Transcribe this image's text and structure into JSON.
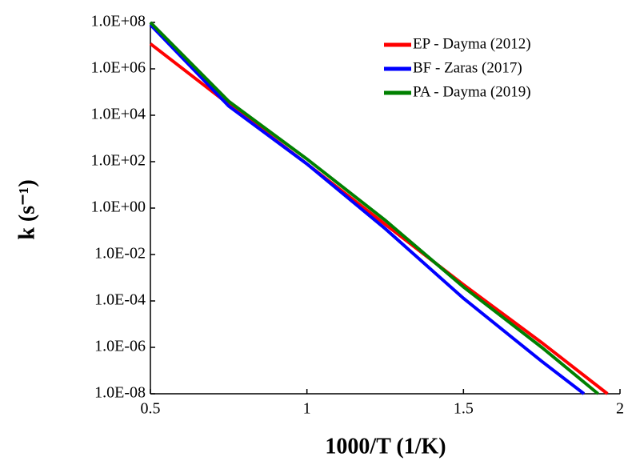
{
  "chart_data": {
    "type": "line",
    "x_label": "1000/T (1/K)",
    "y_label": "k (s⁻¹)",
    "log_y": true,
    "legend": "upper-right",
    "xlim": [
      0.5,
      2
    ],
    "xticks": [
      0.5,
      1,
      1.5,
      2
    ],
    "ylim": [
      1e-08,
      100000000.0
    ],
    "yticks": [
      {
        "value": 1e-08,
        "label": "1.0E-08"
      },
      {
        "value": 1e-06,
        "label": "1.0E-06"
      },
      {
        "value": 0.0001,
        "label": "1.0E-04"
      },
      {
        "value": 0.01,
        "label": "1.0E-02"
      },
      {
        "value": 1,
        "label": "1.0E+00"
      },
      {
        "value": 100,
        "label": "1.0E+02"
      },
      {
        "value": 10000,
        "label": "1.0E+04"
      },
      {
        "value": 1000000,
        "label": "1.0E+06"
      },
      {
        "value": 100000000,
        "label": "1.0E+08"
      }
    ],
    "series": [
      {
        "name": "EP - Dayma (2012)",
        "color": "#ff0000",
        "x": [
          0.5,
          0.75,
          1,
          1.25,
          1.5,
          1.75,
          1.96
        ],
        "values": [
          12000000,
          30000,
          80,
          0.2,
          0.0005,
          1.6e-06,
          1e-08
        ]
      },
      {
        "name": "BF - Zaras (2017)",
        "color": "#0000ff",
        "x": [
          0.5,
          0.75,
          1,
          1.25,
          1.5,
          1.75,
          1.885
        ],
        "values": [
          80000000,
          25000,
          80,
          0.13,
          0.00013,
          2.5e-07,
          1e-08
        ]
      },
      {
        "name": "PA - Dayma (2019)",
        "color": "#008000",
        "x": [
          0.5,
          0.75,
          1,
          1.25,
          1.5,
          1.75,
          1.93
        ],
        "values": [
          100000000,
          40000,
          130,
          0.3,
          0.0004,
          1e-06,
          1e-08
        ]
      }
    ]
  }
}
